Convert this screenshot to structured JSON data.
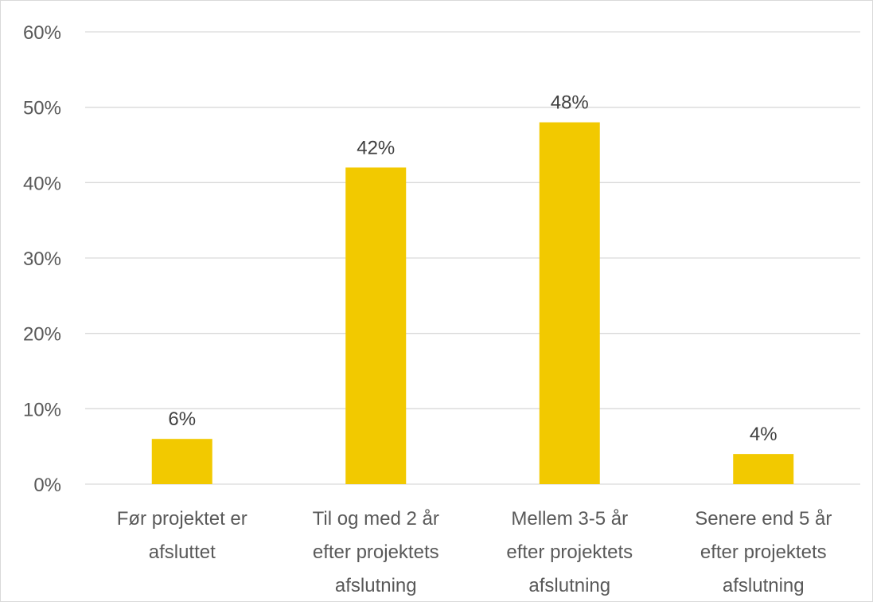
{
  "chart_data": {
    "type": "bar",
    "categories": [
      [
        "Før projektet er",
        "afsluttet"
      ],
      [
        "Til og med 2 år",
        "efter projektets",
        "afslutning"
      ],
      [
        "Mellem 3-5 år",
        "efter projektets",
        "afslutning"
      ],
      [
        "Senere end 5 år",
        "efter projektets",
        "afslutning"
      ]
    ],
    "values": [
      6,
      42,
      48,
      4
    ],
    "value_labels": [
      "6%",
      "42%",
      "48%",
      "4%"
    ],
    "y_ticks": [
      0,
      10,
      20,
      30,
      40,
      50,
      60
    ],
    "y_tick_labels": [
      "0%",
      "10%",
      "20%",
      "30%",
      "40%",
      "50%",
      "60%"
    ],
    "ylim": [
      0,
      60
    ],
    "unit": "%",
    "bar_color": "#f2c900",
    "grid": true,
    "legend": "none",
    "title": "",
    "xlabel": "",
    "ylabel": ""
  }
}
